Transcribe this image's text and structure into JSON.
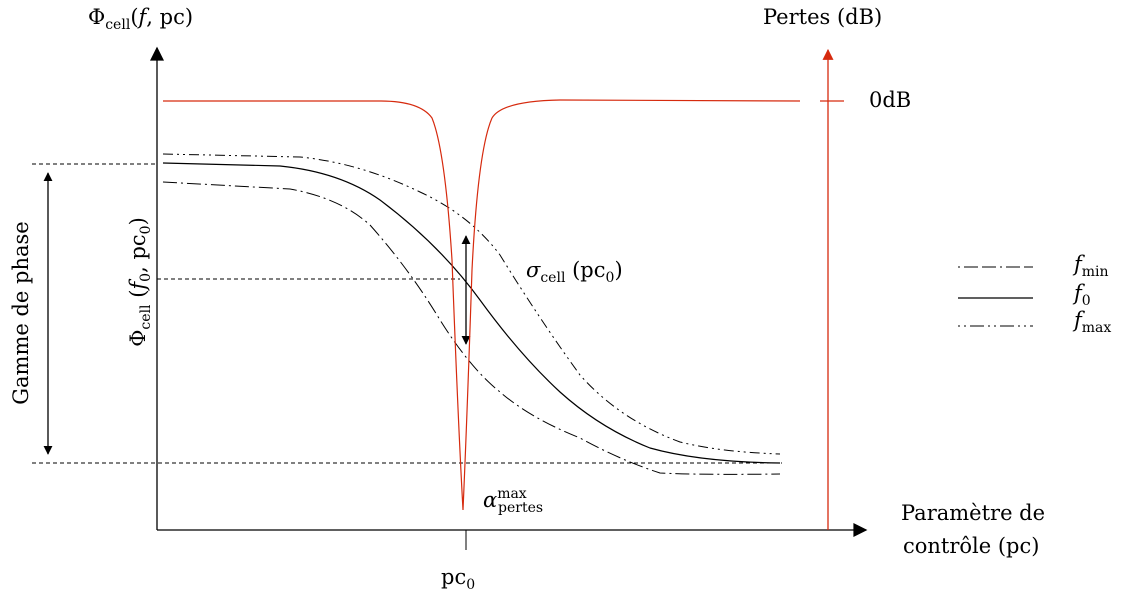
{
  "diagram": {
    "left_axis_label": {
      "main": "Φ",
      "sub": "cell",
      "args": "(",
      "f": "f",
      "rest": ", pc)"
    },
    "right_axis_label": "Pertes (dB)",
    "zero_db_label": "0dB",
    "x_axis_label_line1": "Paramètre de",
    "x_axis_label_line2": "contrôle (pc)",
    "pc0_label": {
      "main": "pc",
      "sub": "0"
    },
    "phase_range_label": "Gamme de phase",
    "phi_f0_label": {
      "main": "Φ",
      "sub": "cell",
      "open": " (",
      "f": "f",
      "f_sub": "0",
      "mid": ", pc",
      "pc_sub": "0",
      "close": ")"
    },
    "sigma_label": {
      "main": "σ",
      "sub": "cell",
      "rest": " (pc",
      "rest_sub": "0",
      "close": ")"
    },
    "alpha_label": {
      "main": "α",
      "sup": "max",
      "sub": "pertes"
    },
    "legend": [
      {
        "name": "f",
        "sub": "min",
        "style": "dash-dot-dash"
      },
      {
        "name": "f",
        "sub": "0",
        "style": "solid"
      },
      {
        "name": "f",
        "sub": "max",
        "style": "dot-dot-dash"
      }
    ],
    "colors": {
      "loss_curve": "#d62a0e",
      "axes": "#000000",
      "guides": "#000000"
    }
  }
}
